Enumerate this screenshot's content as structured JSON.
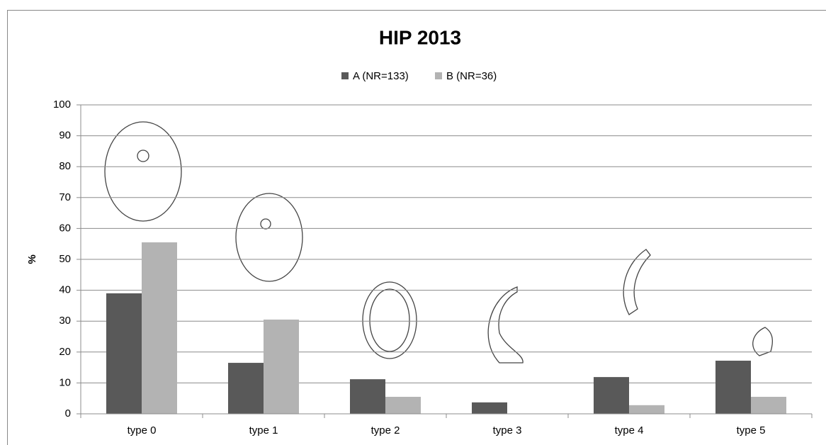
{
  "chart_data": {
    "type": "bar",
    "title": "HIP 2013",
    "y_label": "%",
    "categories": [
      "type 0",
      "type 1",
      "type 2",
      "type 3",
      "type 4",
      "type 5"
    ],
    "series": [
      {
        "name": "A (NR=133)",
        "color": "#595959",
        "values": [
          39,
          16.5,
          11.2,
          3.7,
          11.9,
          17.2
        ]
      },
      {
        "name": "B (NR=36)",
        "color": "#b3b3b3",
        "values": [
          55.5,
          30.5,
          5.5,
          0,
          2.8,
          5.5
        ]
      }
    ],
    "ylim": [
      0,
      100
    ],
    "yticks": [
      0,
      10,
      20,
      30,
      40,
      50,
      60,
      70,
      80,
      90,
      100
    ],
    "grid": true,
    "legend": "top"
  }
}
